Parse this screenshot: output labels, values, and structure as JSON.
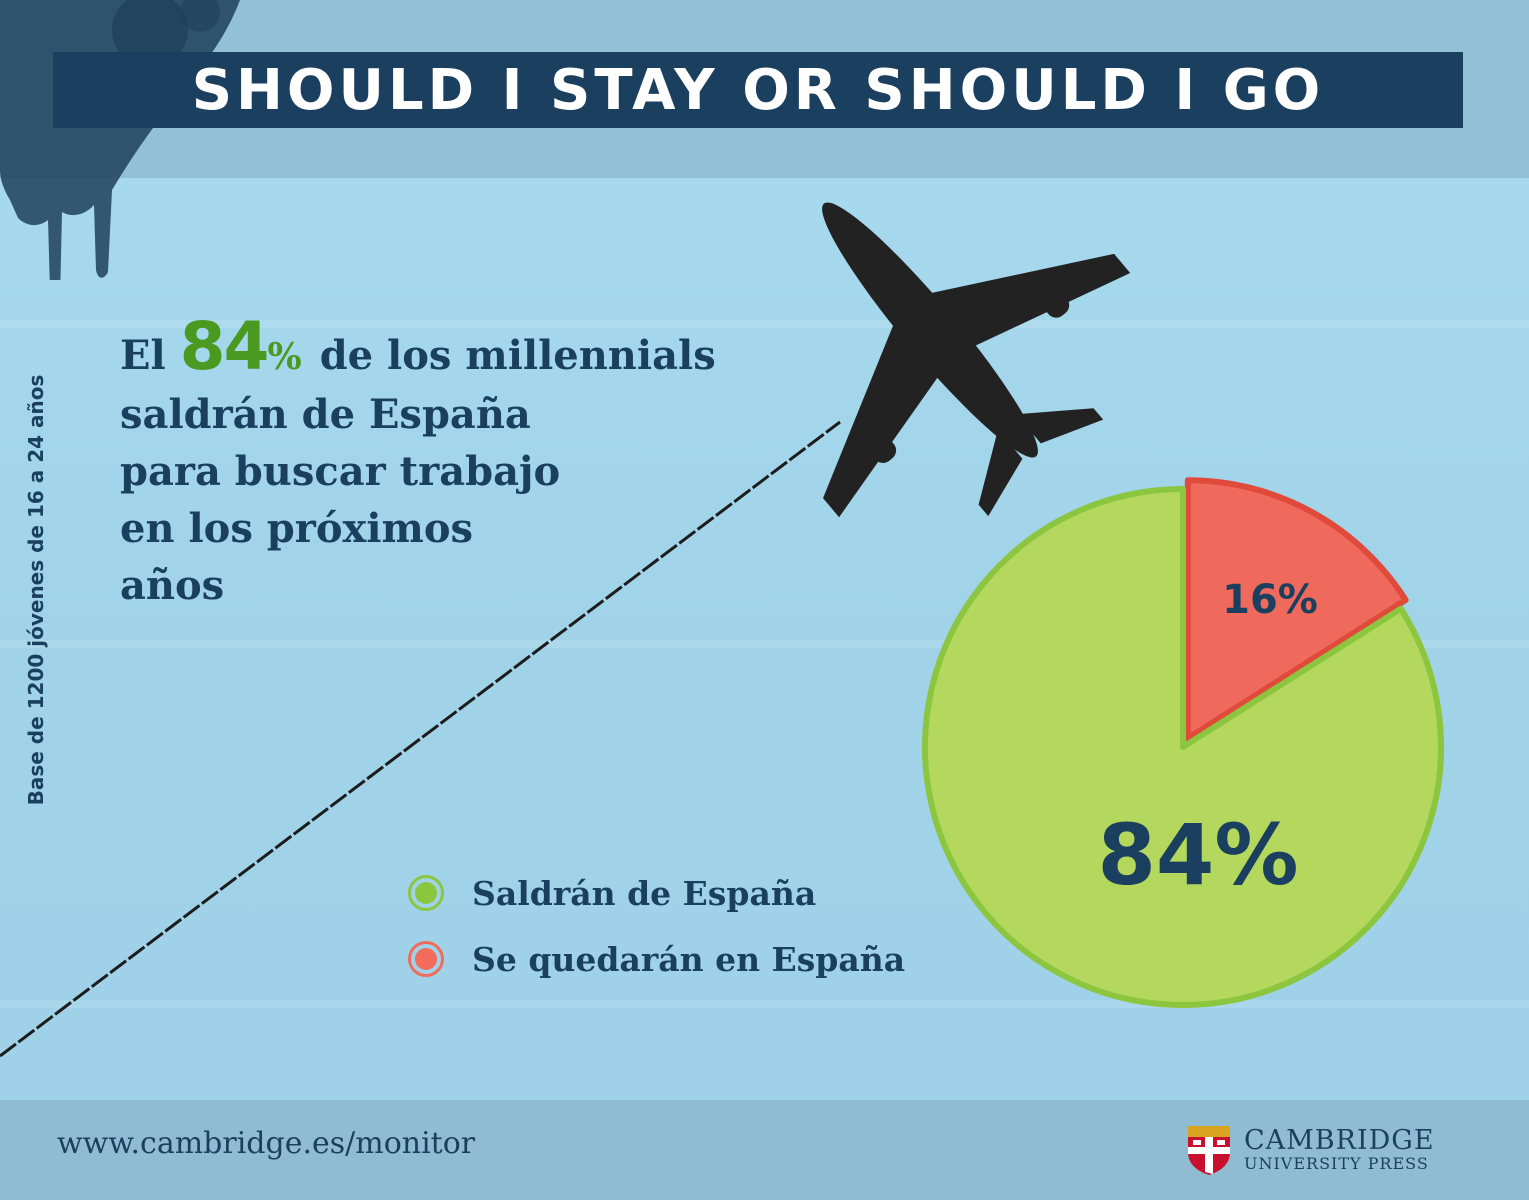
{
  "title": "SHOULD I STAY OR SHOULD I GO",
  "side_note": "Base de 1200 jóvenes de 16 a 24 años",
  "headline": {
    "prefix": "El",
    "number": "84",
    "percent": "%",
    "line1_rest": "de los millennials",
    "line2": "saldrán de España",
    "line3": "para buscar trabajo",
    "line4": "en los próximos",
    "line5": "años"
  },
  "legend": [
    {
      "label": "Saldrán de España",
      "color": "#8cc63f"
    },
    {
      "label": "Se quedarán en España",
      "color": "#f26b5b"
    }
  ],
  "chart_data": {
    "type": "pie",
    "title": "",
    "slices": [
      {
        "name": "Se quedarán en España",
        "value": 16,
        "label": "16%",
        "color": "#ef6a5c"
      },
      {
        "name": "Saldrán de España",
        "value": 84,
        "label": "84%",
        "color": "#b4d85e"
      }
    ]
  },
  "footer": {
    "url": "www.cambridge.es/monitor",
    "logo_main": "CAMBRIDGE",
    "logo_sub": "UNIVERSITY PRESS"
  },
  "colors": {
    "navy": "#1b3f5e",
    "green_text": "#4a9a22",
    "sky": "#a6d9ee"
  }
}
